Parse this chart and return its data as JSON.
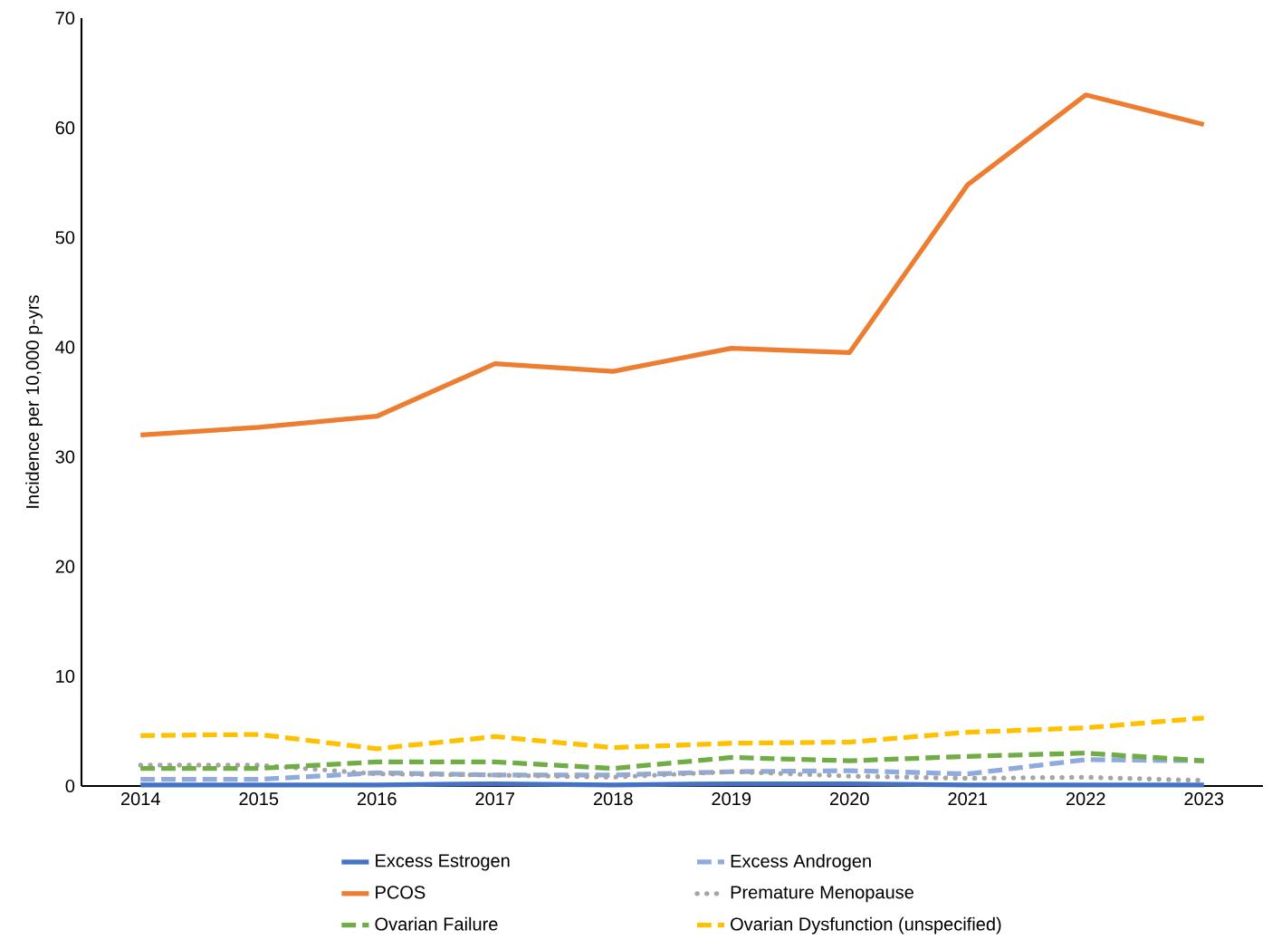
{
  "chart_data": {
    "type": "line",
    "ylabel": "Incidence per 10,000 p-yrs",
    "categories": [
      "2014",
      "2015",
      "2016",
      "2017",
      "2018",
      "2019",
      "2020",
      "2021",
      "2022",
      "2023"
    ],
    "ylim": [
      0,
      70
    ],
    "yticks": [
      0,
      10,
      20,
      30,
      40,
      50,
      60,
      70
    ],
    "grid": false,
    "legend": "bottom",
    "marker": "none",
    "series": [
      {
        "name": "Excess Estrogen",
        "color": "#4472c4",
        "line_style": "solid",
        "values": [
          0.1,
          0.1,
          0.1,
          0.2,
          0.1,
          0.2,
          0.2,
          0.1,
          0.1,
          0.1
        ]
      },
      {
        "name": "Excess Androgen",
        "color": "#8faadc",
        "line_style": "dashed",
        "values": [
          0.6,
          0.6,
          1.2,
          1.0,
          1.0,
          1.3,
          1.4,
          1.1,
          2.4,
          2.3
        ]
      },
      {
        "name": "PCOS",
        "color": "#ed7d31",
        "line_style": "solid",
        "values": [
          32.0,
          32.7,
          33.7,
          38.5,
          37.8,
          39.9,
          39.5,
          54.8,
          63.0,
          60.3
        ]
      },
      {
        "name": "Premature Menopause",
        "color": "#a5a5a5",
        "line_style": "dotted",
        "values": [
          1.9,
          1.9,
          1.1,
          1.0,
          0.8,
          1.3,
          0.9,
          0.7,
          0.8,
          0.5
        ]
      },
      {
        "name": "Ovarian Failure",
        "color": "#70ad47",
        "line_style": "dashed",
        "values": [
          1.6,
          1.6,
          2.2,
          2.2,
          1.6,
          2.6,
          2.3,
          2.7,
          3.0,
          2.3
        ]
      },
      {
        "name": "Ovarian Dysfunction (unspecified)",
        "color": "#ffc000",
        "line_style": "dashed",
        "values": [
          4.6,
          4.7,
          3.4,
          4.5,
          3.5,
          3.9,
          4.0,
          4.9,
          5.3,
          6.2
        ]
      }
    ]
  }
}
